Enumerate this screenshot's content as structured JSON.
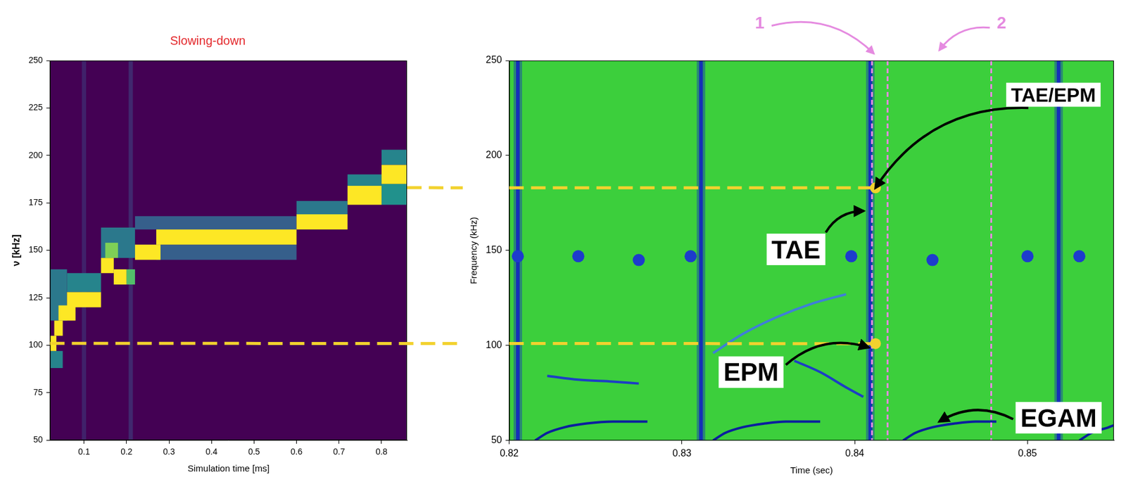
{
  "chart_data": [
    {
      "type": "heatmap",
      "title": "Slowing-down",
      "x_label": "Simulation time [ms]",
      "y_label": "ν [kHz]",
      "xlim": [
        0.02,
        0.86
      ],
      "xticks": [
        0.1,
        0.2,
        0.3,
        0.4,
        0.5,
        0.6,
        0.7,
        0.8
      ],
      "ylim": [
        50,
        250
      ],
      "yticks": [
        50,
        75,
        100,
        125,
        150,
        175,
        200,
        225,
        250
      ],
      "grid": false,
      "zlim": [
        0,
        1
      ],
      "cells": [
        {
          "x": [
            0.095,
            0.105
          ],
          "y": [
            50,
            250
          ],
          "value": 0.1
        },
        {
          "x": [
            0.205,
            0.215
          ],
          "y": [
            50,
            250
          ],
          "value": 0.12
        },
        {
          "x": [
            0.02,
            0.05
          ],
          "y": [
            88,
            97
          ],
          "value": 0.45
        },
        {
          "x": [
            0.02,
            0.06
          ],
          "y": [
            113,
            140
          ],
          "value": 0.4
        },
        {
          "x": [
            0.06,
            0.14
          ],
          "y": [
            128,
            138
          ],
          "value": 0.45
        },
        {
          "x": [
            0.14,
            0.22
          ],
          "y": [
            146,
            162
          ],
          "value": 0.4
        },
        {
          "x": [
            0.22,
            0.6
          ],
          "y": [
            161,
            168
          ],
          "value": 0.3
        },
        {
          "x": [
            0.27,
            0.6
          ],
          "y": [
            145,
            153
          ],
          "value": 0.3
        },
        {
          "x": [
            0.6,
            0.72
          ],
          "y": [
            169,
            176
          ],
          "value": 0.4
        },
        {
          "x": [
            0.72,
            0.8
          ],
          "y": [
            184,
            190
          ],
          "value": 0.45
        },
        {
          "x": [
            0.8,
            0.86
          ],
          "y": [
            174,
            185
          ],
          "value": 0.5
        },
        {
          "x": [
            0.8,
            0.86
          ],
          "y": [
            195,
            203
          ],
          "value": 0.45
        },
        {
          "x": [
            0.02,
            0.035
          ],
          "y": [
            97,
            105
          ],
          "value": 1
        },
        {
          "x": [
            0.03,
            0.05
          ],
          "y": [
            105,
            113
          ],
          "value": 1
        },
        {
          "x": [
            0.04,
            0.08
          ],
          "y": [
            113,
            121
          ],
          "value": 1
        },
        {
          "x": [
            0.06,
            0.14
          ],
          "y": [
            120,
            128
          ],
          "value": 1
        },
        {
          "x": [
            0.14,
            0.17
          ],
          "y": [
            138,
            146
          ],
          "value": 1
        },
        {
          "x": [
            0.15,
            0.18
          ],
          "y": [
            146,
            154
          ],
          "value": 0.8
        },
        {
          "x": [
            0.17,
            0.2
          ],
          "y": [
            132,
            140
          ],
          "value": 1
        },
        {
          "x": [
            0.2,
            0.22
          ],
          "y": [
            132,
            140
          ],
          "value": 0.7
        },
        {
          "x": [
            0.22,
            0.28
          ],
          "y": [
            145,
            153
          ],
          "value": 1
        },
        {
          "x": [
            0.27,
            0.6
          ],
          "y": [
            153,
            161
          ],
          "value": 1
        },
        {
          "x": [
            0.6,
            0.72
          ],
          "y": [
            161,
            169
          ],
          "value": 1
        },
        {
          "x": [
            0.72,
            0.8
          ],
          "y": [
            174,
            184
          ],
          "value": 1
        },
        {
          "x": [
            0.8,
            0.86
          ],
          "y": [
            185,
            195
          ],
          "value": 1
        }
      ]
    },
    {
      "type": "spectrogram",
      "x_label": "Time (sec)",
      "y_label": "Frequency (kHz)",
      "xlim": [
        0.82,
        0.855
      ],
      "xticks": [
        0.82,
        0.83,
        0.84,
        0.85
      ],
      "ylim": [
        50,
        250
      ],
      "yticks": [
        50,
        100,
        150,
        200,
        250
      ],
      "grid": false,
      "bursts": {
        "x": [
          0.8205,
          0.8311,
          0.8409,
          0.8518
        ],
        "color": "#1530b8"
      },
      "series": [
        {
          "type": "line",
          "color": "#0b1f9e",
          "x": [
            0.8215,
            0.8222,
            0.8232,
            0.8245,
            0.826,
            0.828
          ],
          "values": [
            50,
            54,
            57,
            59,
            60,
            60
          ]
        },
        {
          "type": "line",
          "color": "#0b1f9e",
          "x": [
            0.8318,
            0.8325,
            0.8335,
            0.8348,
            0.836,
            0.838
          ],
          "values": [
            50,
            54,
            57,
            59,
            60,
            60
          ]
        },
        {
          "type": "line",
          "color": "#0b1f9e",
          "x": [
            0.8428,
            0.8435,
            0.8445,
            0.8458,
            0.847,
            0.8482
          ],
          "values": [
            50,
            54,
            57,
            59,
            60,
            60
          ]
        },
        {
          "type": "line",
          "color": "#0b1f9e",
          "x": [
            0.853,
            0.8537,
            0.8547,
            0.855
          ],
          "values": [
            50,
            54,
            57,
            58
          ]
        },
        {
          "type": "line",
          "color": "#1c3fc4",
          "x": [
            0.8222,
            0.824,
            0.826,
            0.8275
          ],
          "values": [
            84,
            82,
            81,
            80
          ]
        },
        {
          "type": "line",
          "color": "#1c3fc4",
          "x": [
            0.8365,
            0.838,
            0.8395,
            0.8405
          ],
          "values": [
            92,
            86,
            78,
            73
          ]
        },
        {
          "type": "line",
          "color": "#3f7fd8",
          "x": [
            0.8318,
            0.8335,
            0.8355,
            0.8375,
            0.8395
          ],
          "values": [
            96,
            106,
            115,
            122,
            127
          ]
        },
        {
          "type": "scatter",
          "marker": "circle",
          "color": "#1d3ccc",
          "x": [
            0.8205,
            0.824,
            0.8275,
            0.8305,
            0.8398,
            0.8445,
            0.85,
            0.853
          ],
          "values": [
            147,
            147,
            145,
            147,
            147,
            145,
            147,
            147
          ]
        }
      ],
      "markers": {
        "x": [
          0.841,
          0.8419,
          0.8479
        ],
        "color": "#e58be0",
        "line_style": "dashed"
      },
      "annotations": [
        {
          "text": "TAE/EPM",
          "x": 0.8515,
          "y": 232,
          "arrow_to": [
            0.8412,
            183
          ]
        },
        {
          "text": "TAE",
          "x": 0.8366,
          "y": 150.6,
          "arrow_to": [
            0.8405,
            170.8
          ]
        },
        {
          "text": "EPM",
          "x": 0.834,
          "y": 86,
          "arrow_to": [
            0.8408,
            99
          ]
        },
        {
          "text": "EGAM",
          "x": 0.8518,
          "y": 62,
          "arrow_to": [
            0.8449,
            60
          ]
        },
        {
          "text": "1",
          "x": 0.8345,
          "y": 270,
          "arrow_to": [
            0.8411,
            253.7
          ],
          "color": "#e58be0"
        },
        {
          "text": "2",
          "x": 0.8485,
          "y": 270,
          "arrow_to": [
            0.8449,
            255.5
          ],
          "color": "#e58be0"
        }
      ]
    }
  ],
  "links": [
    {
      "y": 183,
      "x_left": 0.86,
      "x_right": 0.8412,
      "color": "#f2d22e",
      "line_style": "dashed",
      "marker": "circle"
    },
    {
      "y": 101,
      "x_left": 0.02,
      "x_right": 0.8412,
      "color": "#f2d22e",
      "line_style": "dashed",
      "marker": "circle"
    }
  ]
}
